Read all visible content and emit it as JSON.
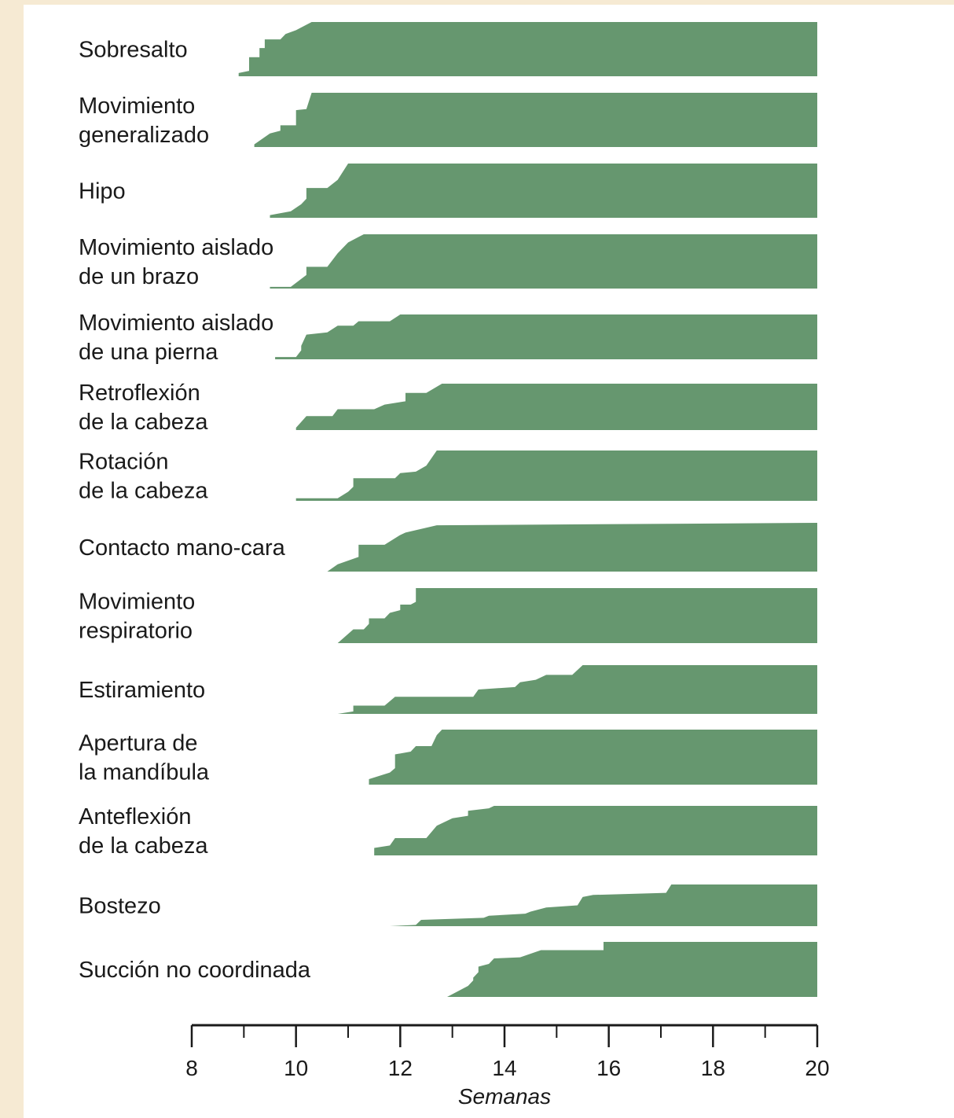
{
  "chart_data": {
    "type": "area",
    "title": "",
    "xlabel": "Semanas",
    "ylabel": "",
    "xlim": [
      8,
      20
    ],
    "x_ticks_major": [
      8,
      10,
      12,
      14,
      16,
      18,
      20
    ],
    "x_ticks_minor": [
      9,
      11,
      13,
      15,
      17,
      19
    ],
    "ylim_per_row": [
      0,
      1
    ],
    "fill_color": "#66976f",
    "grid": false,
    "legend": "none",
    "series": [
      {
        "label": "Sobresalto",
        "x": [
          8.9,
          9.1,
          9.1,
          9.3,
          9.3,
          9.4,
          9.4,
          9.7,
          9.8,
          10.0,
          10.3,
          20.0
        ],
        "y": [
          0.06,
          0.1,
          0.35,
          0.35,
          0.52,
          0.52,
          0.68,
          0.68,
          0.78,
          0.85,
          1.0,
          1.0
        ]
      },
      {
        "label": "Movimiento generalizado",
        "x": [
          9.2,
          9.5,
          9.7,
          9.7,
          10.0,
          10.0,
          10.2,
          10.3,
          20.0
        ],
        "y": [
          0.05,
          0.25,
          0.3,
          0.4,
          0.4,
          0.68,
          0.7,
          1.0,
          1.0
        ]
      },
      {
        "label": "Hipo",
        "x": [
          9.5,
          9.9,
          10.1,
          10.2,
          10.2,
          10.6,
          10.8,
          11.0,
          20.0
        ],
        "y": [
          0.05,
          0.12,
          0.25,
          0.35,
          0.55,
          0.55,
          0.7,
          1.0,
          1.0
        ]
      },
      {
        "label": "Movimiento aislado de un brazo",
        "x": [
          9.5,
          9.9,
          10.2,
          10.2,
          10.6,
          10.8,
          11.0,
          11.2,
          11.3,
          20.0
        ],
        "y": [
          0.03,
          0.03,
          0.25,
          0.4,
          0.4,
          0.65,
          0.85,
          0.95,
          1.0,
          1.0
        ]
      },
      {
        "label": "Movimiento aislado de una pierna",
        "x": [
          9.6,
          10.0,
          10.1,
          10.1,
          10.2,
          10.6,
          10.8,
          11.1,
          11.2,
          11.8,
          12.0,
          20.0
        ],
        "y": [
          0.05,
          0.05,
          0.2,
          0.3,
          0.55,
          0.6,
          0.75,
          0.75,
          0.85,
          0.85,
          1.0,
          1.0
        ]
      },
      {
        "label": "Retroflexión de la cabeza",
        "x": [
          10.0,
          10.2,
          10.7,
          10.8,
          11.5,
          11.7,
          12.1,
          12.1,
          12.5,
          12.8,
          20.0
        ],
        "y": [
          0.05,
          0.3,
          0.3,
          0.45,
          0.45,
          0.55,
          0.62,
          0.8,
          0.8,
          1.0,
          1.0
        ]
      },
      {
        "label": "Rotación de la cabeza",
        "x": [
          10.0,
          10.8,
          11.0,
          11.1,
          11.1,
          11.9,
          12.0,
          12.3,
          12.5,
          12.7,
          20.0
        ],
        "y": [
          0.05,
          0.05,
          0.18,
          0.28,
          0.45,
          0.45,
          0.55,
          0.58,
          0.7,
          1.0,
          1.0
        ]
      },
      {
        "label": "Contacto mano-cara",
        "x": [
          10.6,
          10.8,
          11.2,
          11.2,
          11.7,
          12.0,
          12.1,
          12.7,
          20.0
        ],
        "y": [
          0.0,
          0.15,
          0.3,
          0.55,
          0.55,
          0.75,
          0.8,
          0.95,
          1.0
        ]
      },
      {
        "label": "Movimiento respiratorio",
        "x": [
          10.8,
          11.1,
          11.3,
          11.4,
          11.4,
          11.7,
          11.8,
          12.0,
          12.0,
          12.2,
          12.3,
          12.3,
          20.0
        ],
        "y": [
          0.0,
          0.25,
          0.25,
          0.35,
          0.45,
          0.45,
          0.55,
          0.6,
          0.7,
          0.7,
          0.75,
          1.0,
          1.0
        ]
      },
      {
        "label": "Estiramiento",
        "x": [
          10.8,
          11.1,
          11.1,
          11.7,
          11.9,
          13.4,
          13.5,
          14.2,
          14.3,
          14.6,
          14.8,
          15.3,
          15.5,
          20.0
        ],
        "y": [
          0.0,
          0.05,
          0.17,
          0.17,
          0.35,
          0.35,
          0.5,
          0.55,
          0.65,
          0.7,
          0.8,
          0.8,
          1.0,
          1.0
        ]
      },
      {
        "label": "Apertura de la mandíbula",
        "x": [
          11.0,
          11.4,
          11.4,
          11.8,
          11.9,
          11.9,
          12.2,
          12.3,
          12.6,
          12.7,
          12.8,
          20.0
        ],
        "y": [
          0.0,
          0.0,
          0.1,
          0.22,
          0.3,
          0.55,
          0.6,
          0.7,
          0.7,
          0.9,
          1.0,
          1.0
        ]
      },
      {
        "label": "Anteflexión de la cabeza",
        "x": [
          11.0,
          11.5,
          11.5,
          11.8,
          11.9,
          12.5,
          12.7,
          13.0,
          13.3,
          13.3,
          13.7,
          13.8,
          20.0
        ],
        "y": [
          0.0,
          0.0,
          0.15,
          0.2,
          0.35,
          0.35,
          0.6,
          0.75,
          0.8,
          0.9,
          0.95,
          1.0,
          1.0
        ]
      },
      {
        "label": "Bostezo",
        "x": [
          11.8,
          12.3,
          12.4,
          13.6,
          13.7,
          14.4,
          14.5,
          14.8,
          15.4,
          15.5,
          15.7,
          17.1,
          17.2,
          20.0
        ],
        "y": [
          0.0,
          0.03,
          0.15,
          0.2,
          0.25,
          0.3,
          0.35,
          0.45,
          0.5,
          0.7,
          0.75,
          0.8,
          1.0,
          1.0
        ]
      },
      {
        "label": "Succión no coordinada",
        "x": [
          12.9,
          13.3,
          13.4,
          13.4,
          13.5,
          13.5,
          13.7,
          13.8,
          14.3,
          14.7,
          15.9,
          15.9,
          20.0
        ],
        "y": [
          0.0,
          0.2,
          0.3,
          0.35,
          0.45,
          0.55,
          0.6,
          0.7,
          0.72,
          0.85,
          0.85,
          1.0,
          1.0
        ]
      }
    ],
    "row_label_lines": [
      [
        "Sobresalto"
      ],
      [
        "Movimiento",
        "generalizado"
      ],
      [
        "Hipo"
      ],
      [
        "Movimiento aislado",
        "de un brazo"
      ],
      [
        "Movimiento aislado",
        "de una pierna"
      ],
      [
        "Retroflexión",
        "de la cabeza"
      ],
      [
        "Rotación",
        "de la cabeza"
      ],
      [
        "Contacto mano-cara"
      ],
      [
        "Movimiento",
        "respiratorio"
      ],
      [
        "Estiramiento"
      ],
      [
        "Apertura de",
        "la mandíbula"
      ],
      [
        "Anteflexión",
        "de la cabeza"
      ],
      [
        "Bostezo"
      ],
      [
        "Succión no coordinada"
      ]
    ]
  }
}
